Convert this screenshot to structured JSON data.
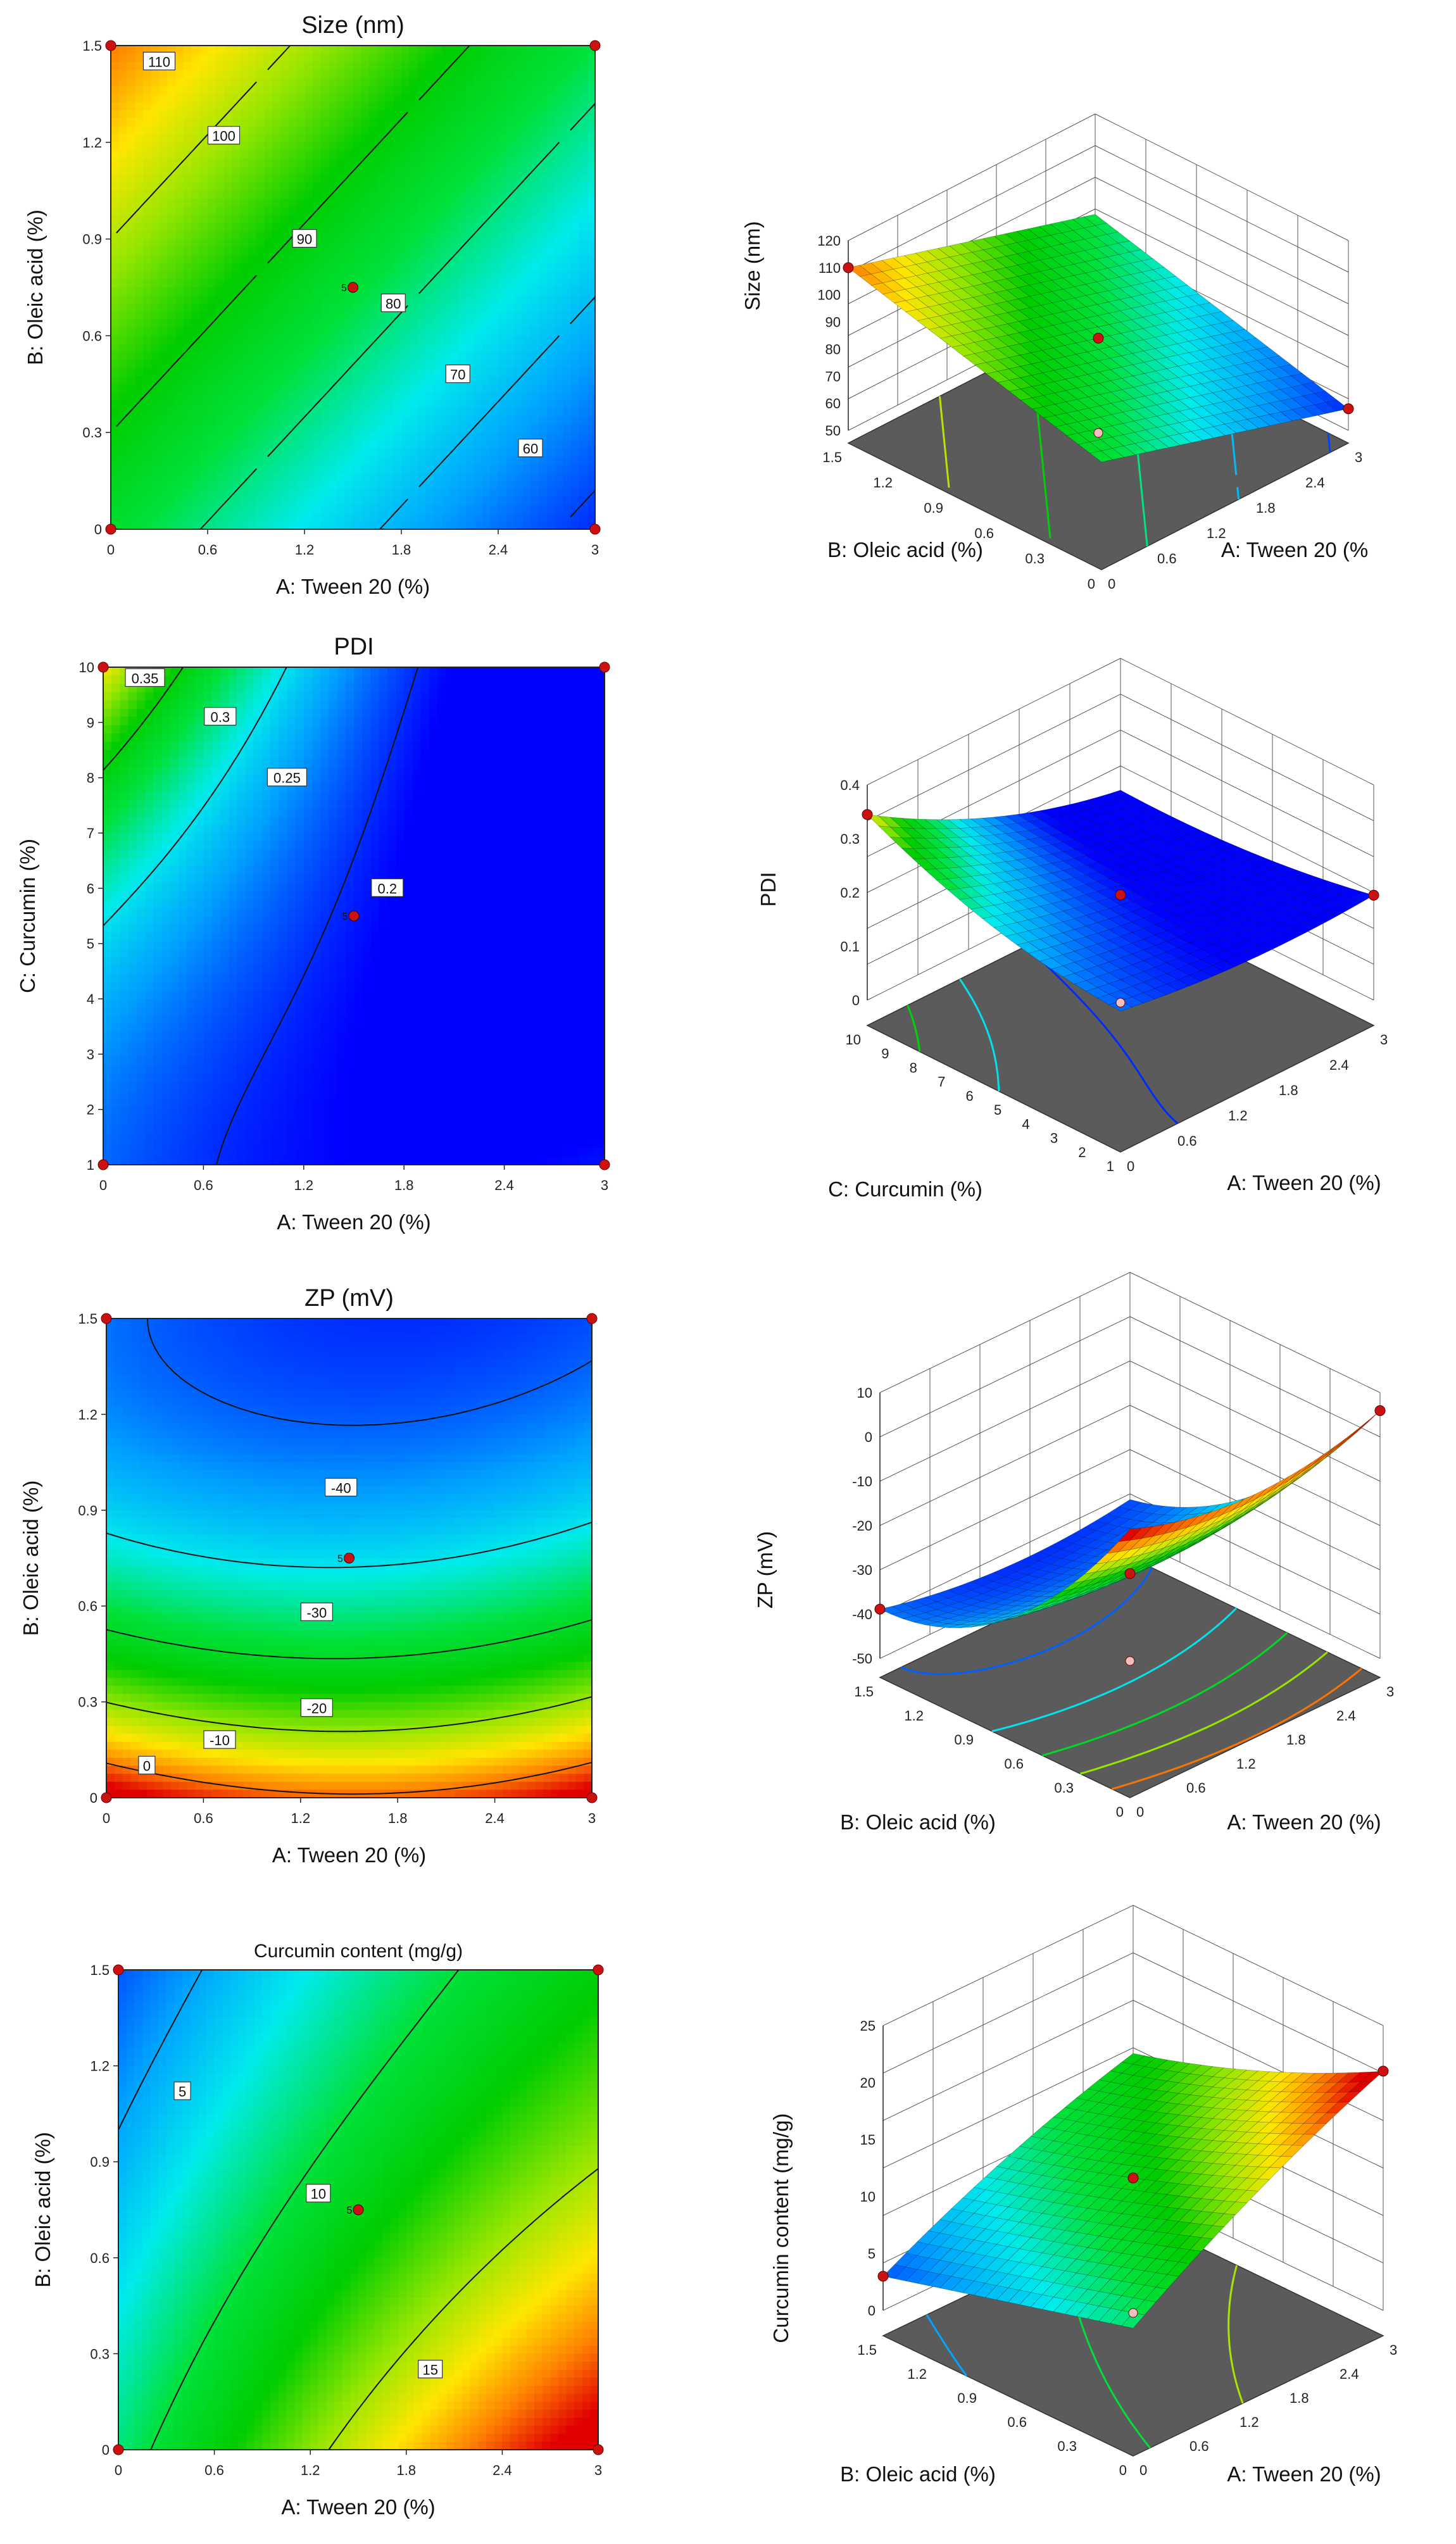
{
  "colors": {
    "point": "#cc1111",
    "floor": "#5b5b5b",
    "grid": "#555555"
  },
  "chart_data": [
    {
      "type": "contour",
      "id": "size2d",
      "title": "Size (nm)",
      "xlabel": "A: Tween 20 (%)",
      "ylabel": "B: Oleic acid (%)",
      "xlim": [
        0,
        3
      ],
      "ylim": [
        0,
        1.5
      ],
      "xticks": [
        "0",
        "0.6",
        "1.2",
        "1.8",
        "2.4",
        "3"
      ],
      "yticks": [
        "0",
        "0.3",
        "0.6",
        "0.9",
        "1.2",
        "1.5"
      ],
      "zrange": [
        55,
        115
      ],
      "contours": [
        {
          "label": "110",
          "level": 110,
          "label_at": [
            0.3,
            1.45
          ]
        },
        {
          "label": "100",
          "level": 100,
          "label_at": [
            0.7,
            1.22
          ]
        },
        {
          "label": "90",
          "level": 90,
          "label_at": [
            1.2,
            0.9
          ]
        },
        {
          "label": "80",
          "level": 80,
          "label_at": [
            1.75,
            0.7
          ]
        },
        {
          "label": "70",
          "level": 70,
          "label_at": [
            2.15,
            0.48
          ]
        },
        {
          "label": "60",
          "level": 60,
          "label_at": [
            2.6,
            0.25
          ]
        }
      ],
      "center_point": {
        "x": 1.5,
        "y": 0.75,
        "label": "5"
      },
      "design_points": [
        [
          0,
          0
        ],
        [
          0,
          1.5
        ],
        [
          3,
          0
        ],
        [
          3,
          1.5
        ]
      ]
    },
    {
      "type": "surface3d",
      "id": "size3d",
      "zlabel": "Size (nm)",
      "xlabel": "A: Tween 20 (%",
      "ylabel": "B: Oleic acid (%)",
      "zlim": [
        50,
        120
      ],
      "zticks": [
        "50",
        "60",
        "70",
        "80",
        "90",
        "100",
        "110",
        "120"
      ],
      "xticks": [
        "0",
        "0.6",
        "1.2",
        "1.8",
        "2.4",
        "3"
      ],
      "yticks": [
        "0",
        "0.3",
        "0.6",
        "0.9",
        "1.2",
        "1.5"
      ],
      "floor_contours": [
        110,
        100,
        90,
        80,
        70,
        60
      ]
    },
    {
      "type": "contour",
      "id": "pdi2d",
      "title": "PDI",
      "xlabel": "A: Tween 20 (%)",
      "ylabel": "C: Curcumin (%)",
      "xlim": [
        0,
        3
      ],
      "ylim": [
        1,
        10
      ],
      "xticks": [
        "0",
        "0.6",
        "1.2",
        "1.8",
        "2.4",
        "3"
      ],
      "yticks": [
        "1",
        "2",
        "3",
        "4",
        "5",
        "6",
        "7",
        "8",
        "9",
        "10"
      ],
      "zrange": [
        0.19,
        0.38
      ],
      "contours": [
        {
          "label": "0.35",
          "level": 0.35,
          "label_at": [
            0.25,
            9.8
          ]
        },
        {
          "label": "0.3",
          "level": 0.3,
          "label_at": [
            0.7,
            9.1
          ]
        },
        {
          "label": "0.25",
          "level": 0.25,
          "label_at": [
            1.1,
            8.0
          ]
        },
        {
          "label": "0.2",
          "level": 0.2,
          "label_at": [
            1.7,
            6.0
          ]
        }
      ],
      "center_point": {
        "x": 1.5,
        "y": 5.5,
        "label": "5"
      },
      "design_points": [
        [
          0,
          1
        ],
        [
          0,
          10
        ],
        [
          3,
          1
        ],
        [
          3,
          10
        ]
      ]
    },
    {
      "type": "surface3d",
      "id": "pdi3d",
      "zlabel": "PDI",
      "xlabel": "A: Tween 20 (%)",
      "ylabel": "C: Curcumin (%)",
      "zlim": [
        0,
        0.4
      ],
      "zticks": [
        "0",
        "0.1",
        "0.2",
        "0.3",
        "0.4"
      ],
      "xticks": [
        "0",
        "0.6",
        "1.2",
        "1.8",
        "2.4",
        "3"
      ],
      "yticks": [
        "1",
        "2",
        "3",
        "4",
        "5",
        "6",
        "7",
        "8",
        "9",
        "10"
      ],
      "floor_contours": [
        0.35,
        0.3,
        0.25,
        0.2
      ]
    },
    {
      "type": "contour",
      "id": "zp2d",
      "title": "ZP (mV)",
      "xlabel": "A: Tween 20 (%)",
      "ylabel": "B: Oleic acid (%)",
      "xlim": [
        0,
        3
      ],
      "ylim": [
        0,
        1.5
      ],
      "xticks": [
        "0",
        "0.6",
        "1.2",
        "1.8",
        "2.4",
        "3"
      ],
      "yticks": [
        "0",
        "0.3",
        "0.6",
        "0.9",
        "1.2",
        "1.5"
      ],
      "zrange": [
        -46,
        4
      ],
      "contours": [
        {
          "label": "-40",
          "level": -40,
          "label_at": [
            1.45,
            0.97
          ]
        },
        {
          "label": "-30",
          "level": -30,
          "label_at": [
            1.3,
            0.58
          ]
        },
        {
          "label": "-20",
          "level": -20,
          "label_at": [
            1.3,
            0.28
          ]
        },
        {
          "label": "-10",
          "level": -10,
          "label_at": [
            0.7,
            0.18
          ]
        },
        {
          "label": "0",
          "level": 0,
          "label_at": [
            0.25,
            0.1
          ]
        }
      ],
      "center_point": {
        "x": 1.5,
        "y": 0.75,
        "label": "5"
      },
      "design_points": [
        [
          0,
          0
        ],
        [
          0,
          1.5
        ],
        [
          3,
          0
        ],
        [
          3,
          1.5
        ]
      ]
    },
    {
      "type": "surface3d",
      "id": "zp3d",
      "zlabel": "ZP (mV)",
      "xlabel": "A: Tween 20 (%)",
      "ylabel": "B: Oleic acid (%)",
      "zlim": [
        -50,
        10
      ],
      "zticks": [
        "-50",
        "-40",
        "-30",
        "-20",
        "-10",
        "0",
        "10"
      ],
      "xticks": [
        "0",
        "0.6",
        "1.2",
        "1.8",
        "2.4",
        "3"
      ],
      "yticks": [
        "0",
        "0.3",
        "0.6",
        "0.9",
        "1.2",
        "1.5"
      ],
      "floor_contours": [
        -40,
        -30,
        -20,
        -10,
        0
      ]
    },
    {
      "type": "contour",
      "id": "cc2d",
      "title": "Curcumin content (mg/g)",
      "xlabel": "A: Tween 20 (%)",
      "ylabel": "B: Oleic acid (%)",
      "xlim": [
        0,
        3
      ],
      "ylim": [
        0,
        1.5
      ],
      "xticks": [
        "0",
        "0.6",
        "1.2",
        "1.8",
        "2.4",
        "3"
      ],
      "yticks": [
        "0",
        "0.3",
        "0.6",
        "0.9",
        "1.2",
        "1.5"
      ],
      "zrange": [
        1,
        20
      ],
      "contours": [
        {
          "label": "5",
          "level": 5,
          "label_at": [
            0.4,
            1.12
          ]
        },
        {
          "label": "10",
          "level": 10,
          "label_at": [
            1.25,
            0.8
          ]
        },
        {
          "label": "15",
          "level": 15,
          "label_at": [
            1.95,
            0.25
          ]
        }
      ],
      "center_point": {
        "x": 1.5,
        "y": 0.75,
        "label": "5"
      },
      "design_points": [
        [
          0,
          0
        ],
        [
          0,
          1.5
        ],
        [
          3,
          0
        ],
        [
          3,
          1.5
        ]
      ]
    },
    {
      "type": "surface3d",
      "id": "cc3d",
      "zlabel": "Curcumin content (mg/g)",
      "xlabel": "A: Tween 20 (%)",
      "ylabel": "B: Oleic acid (%)",
      "zlim": [
        0,
        25
      ],
      "zticks": [
        "0",
        "5",
        "10",
        "15",
        "20",
        "25"
      ],
      "xticks": [
        "0",
        "0.6",
        "1.2",
        "1.8",
        "2.4",
        "3"
      ],
      "yticks": [
        "0",
        "0.3",
        "0.6",
        "0.9",
        "1.2",
        "1.5"
      ],
      "floor_contours": [
        5,
        10,
        15
      ]
    }
  ]
}
